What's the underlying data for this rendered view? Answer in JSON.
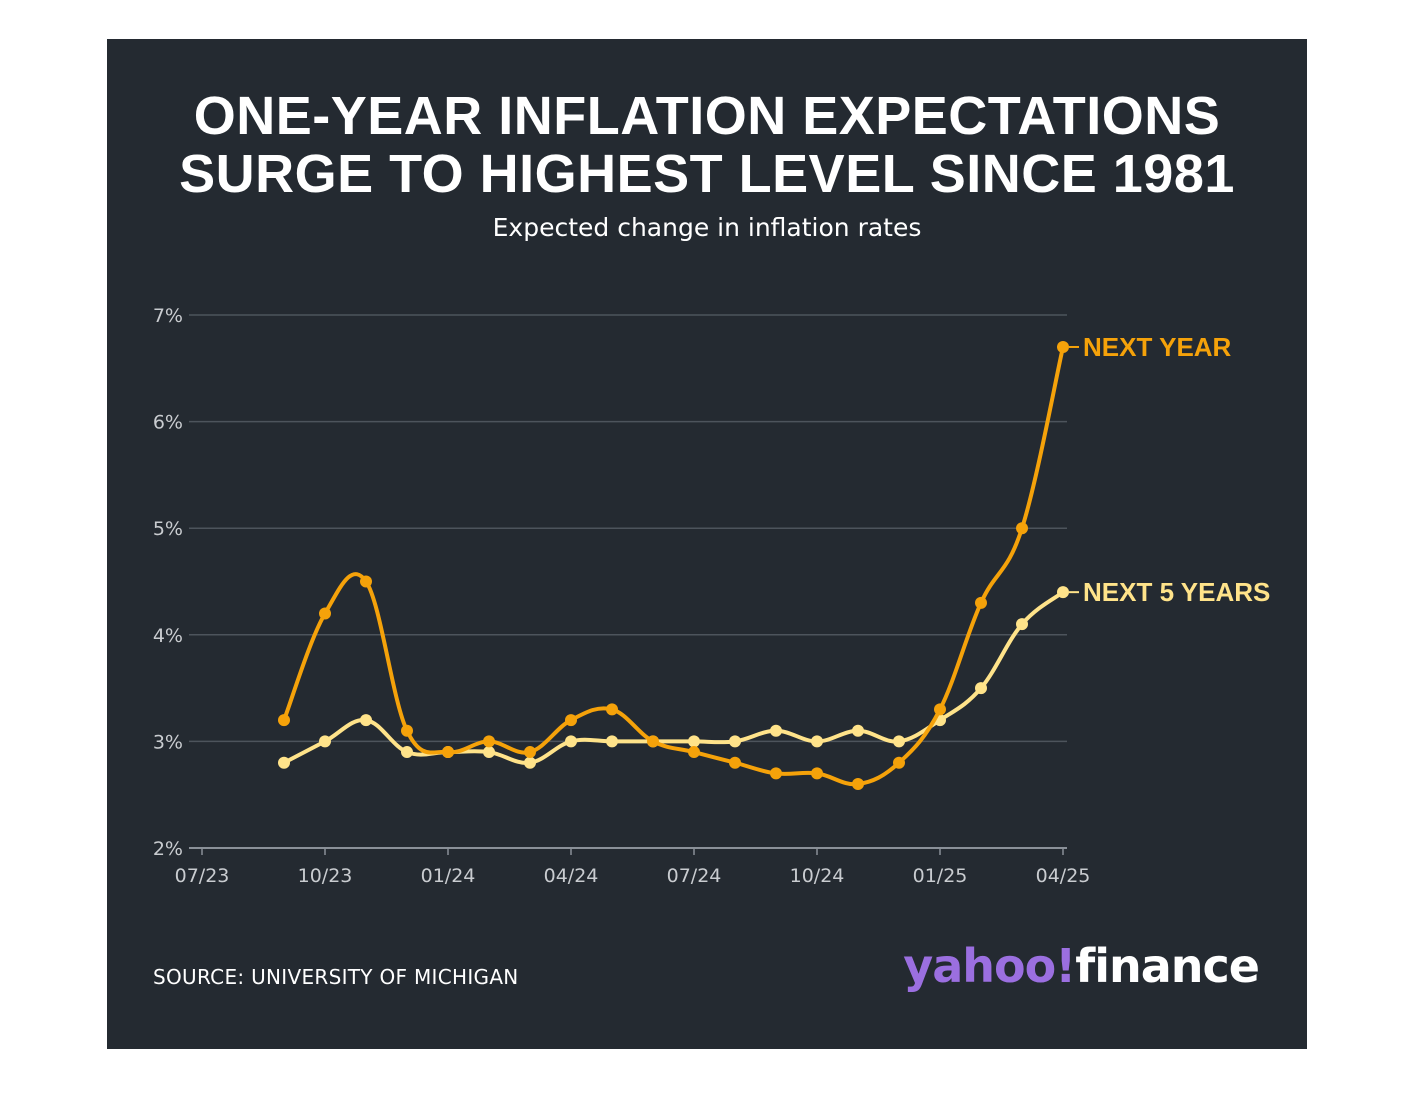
{
  "title_lines": [
    "ONE-YEAR INFLATION EXPECTATIONS",
    "SURGE TO HIGHEST LEVEL SINCE 1981"
  ],
  "subtitle": "Expected change in inflation rates",
  "source": "SOURCE: UNIVERSITY OF MICHIGAN",
  "logo": {
    "brand": "yahoo!",
    "product": "finance"
  },
  "colors": {
    "background": "#242a31",
    "next_year": "#f5a20a",
    "next_5_years": "#ffe38a",
    "brand": "#9b6fe0"
  },
  "chart_data": {
    "type": "line",
    "title": "ONE-YEAR INFLATION EXPECTATIONS SURGE TO HIGHEST LEVEL SINCE 1981",
    "subtitle": "Expected change in inflation rates",
    "x": [
      "2023-09",
      "2023-10",
      "2023-11",
      "2023-12",
      "2024-01",
      "2024-02",
      "2024-03",
      "2024-04",
      "2024-05",
      "2024-06",
      "2024-07",
      "2024-08",
      "2024-09",
      "2024-10",
      "2024-11",
      "2024-12",
      "2025-01",
      "2025-02",
      "2025-03",
      "2025-04"
    ],
    "x_ticks": [
      "07/23",
      "10/23",
      "01/24",
      "04/24",
      "07/24",
      "10/24",
      "01/25",
      "04/25"
    ],
    "y_ticks": [
      "2%",
      "3%",
      "4%",
      "5%",
      "6%",
      "7%"
    ],
    "ylim": [
      2,
      7
    ],
    "grid": true,
    "series": [
      {
        "name": "NEXT YEAR",
        "values": [
          3.2,
          4.2,
          4.5,
          3.1,
          2.9,
          3.0,
          2.9,
          3.2,
          3.3,
          3.0,
          2.9,
          2.8,
          2.7,
          2.7,
          2.6,
          2.8,
          3.3,
          4.3,
          5.0,
          6.7
        ]
      },
      {
        "name": "NEXT 5 YEARS",
        "values": [
          2.8,
          3.0,
          3.2,
          2.9,
          2.9,
          2.9,
          2.8,
          3.0,
          3.0,
          3.0,
          3.0,
          3.0,
          3.1,
          3.0,
          3.1,
          3.0,
          3.2,
          3.5,
          4.1,
          4.4
        ]
      }
    ]
  }
}
